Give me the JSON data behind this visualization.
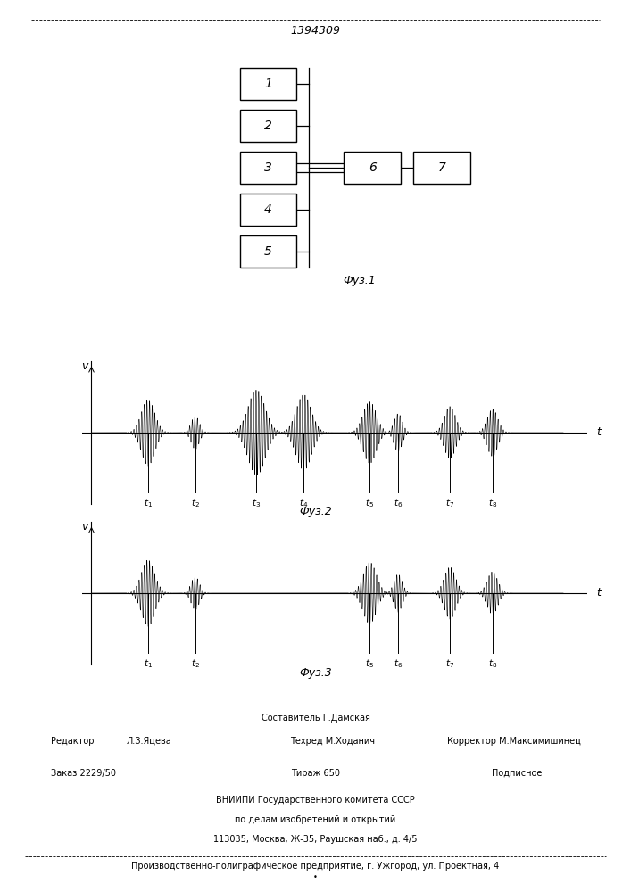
{
  "patent_number": "1394309",
  "fig1_label": "Фуз.1",
  "fig2_label": "Фуз.2",
  "fig3_label": "Фуз.3",
  "bg_color": "#ffffff",
  "footer_sostavitel": "Составитель Г.Дамская",
  "footer_redaktor": "Редактор",
  "footer_redaktor_name": "Л.З.Яцева",
  "footer_tehred": "Техред М.Ходанич",
  "footer_korrektor": "Корректор М.Максимишинец",
  "footer_zakaz": "Заказ 2229/50",
  "footer_tirazh": "Тираж 650",
  "footer_podpisnoe": "Подписное",
  "footer_vniipii": "ВНИИПИ Государственного комитета СССР",
  "footer_po_delam": "по делам изобретений и открытий",
  "footer_address": "113035, Москва, Ж-35, Раушская наб., д. 4/5",
  "footer_proizv": "Производственно-полиграфическое предприятие, г. Ужгород, ул. Проектная, 4"
}
